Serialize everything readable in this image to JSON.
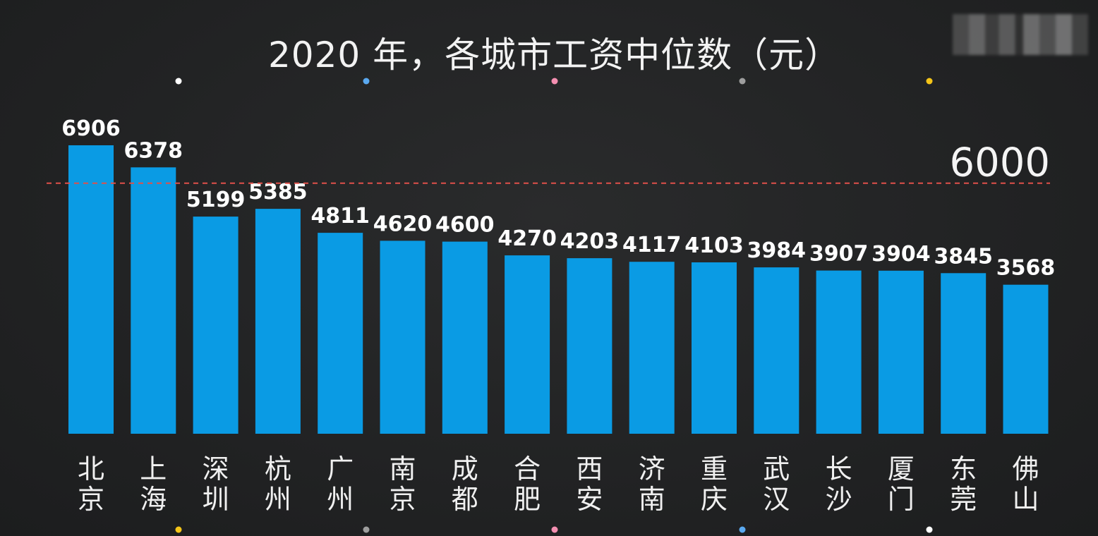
{
  "chart_data": {
    "type": "bar",
    "title": "2020 年，各城市工资中位数（元）",
    "categories": [
      "北京",
      "上海",
      "深圳",
      "杭州",
      "广州",
      "南京",
      "成都",
      "合肥",
      "西安",
      "济南",
      "重庆",
      "武汉",
      "长沙",
      "厦门",
      "东莞",
      "佛山"
    ],
    "values": [
      6906,
      6378,
      5199,
      5385,
      4811,
      4620,
      4600,
      4270,
      4203,
      4117,
      4103,
      3984,
      3907,
      3904,
      3845,
      3568
    ],
    "reference_line": {
      "value": 6000,
      "label": "6000",
      "color": "#e0504a",
      "style": "dashed"
    },
    "bar_color": "#0a9be4",
    "ylim": [
      0,
      7500
    ],
    "xlabel": "",
    "ylabel": "",
    "grid": false,
    "legend": "none"
  },
  "colors": {
    "background": "#222324",
    "text": "#ffffff",
    "dots": [
      "#ffffff",
      "#5aa9f0",
      "#f48fb1",
      "#9e9e9e",
      "#f5c518"
    ]
  }
}
